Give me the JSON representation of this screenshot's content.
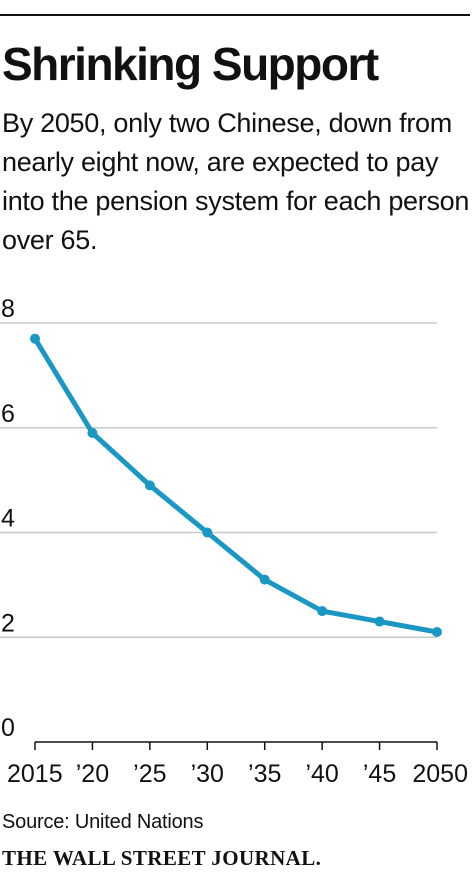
{
  "title": "Shrinking Support",
  "subtitle": "By 2050, only two Chinese, down from nearly eight now, are expected to pay into the pension system for each person over 65.",
  "source": "Source: United Nations",
  "publisher": "THE WALL STREET JOURNAL.",
  "colors": {
    "line": "#1a97c2",
    "grid": "#c8c8c8",
    "axis": "#111111",
    "text": "#111111"
  },
  "chart_data": {
    "type": "line",
    "title": "",
    "xlabel": "",
    "ylabel": "",
    "x": [
      2015,
      2020,
      2025,
      2030,
      2035,
      2040,
      2045,
      2050
    ],
    "x_tick_labels": [
      "2015",
      "’20",
      "’25",
      "’30",
      "’35",
      "’40",
      "’45",
      "2050"
    ],
    "series": [
      {
        "values": [
          7.7,
          5.9,
          4.9,
          4.0,
          3.1,
          2.5,
          2.3,
          2.1
        ]
      }
    ],
    "y_ticks": [
      0,
      2,
      4,
      6,
      8
    ],
    "y_tick_labels": [
      "0",
      "2",
      "4",
      "6",
      "8"
    ],
    "ylim": [
      0,
      8
    ],
    "xlim": [
      2015,
      2050
    ],
    "grid": true,
    "markers": true,
    "legend": "none"
  }
}
